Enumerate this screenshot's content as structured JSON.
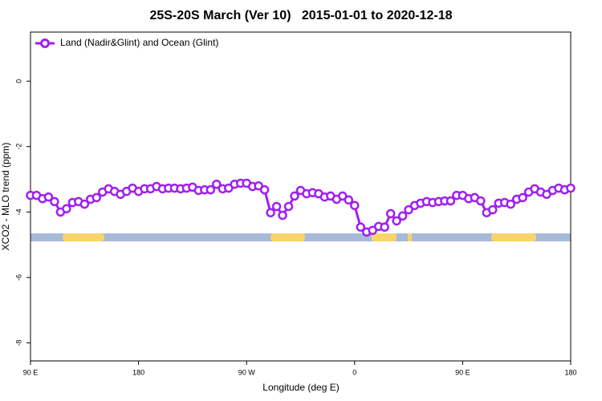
{
  "chart_data": {
    "type": "line",
    "title": "25S-20S March (Ver 10)   2015-01-01 to 2020-12-18",
    "x_label": "Longitude (deg E)",
    "y_label": "XCO2 - MLO trend (ppm)",
    "xlim": [
      90,
      540
    ],
    "ylim": [
      -8.55,
      1.5
    ],
    "xticks": [
      {
        "value": 90,
        "label": "90 E"
      },
      {
        "value": 180,
        "label": "180"
      },
      {
        "value": 270,
        "label": "90 W"
      },
      {
        "value": 360,
        "label": "0"
      },
      {
        "value": 450,
        "label": "90 E"
      },
      {
        "value": 540,
        "label": "180"
      }
    ],
    "yticks": [
      0,
      -2,
      -4,
      -6,
      -8
    ],
    "legend": "top-left",
    "x": [
      90,
      95,
      100,
      105,
      110,
      115,
      120,
      125,
      130,
      135,
      140,
      145,
      150,
      155,
      160,
      165,
      170,
      175,
      180,
      185,
      190,
      195,
      200,
      205,
      210,
      215,
      220,
      225,
      230,
      235,
      240,
      245,
      250,
      255,
      260,
      265,
      270,
      275,
      280,
      285,
      290,
      295,
      300,
      305,
      310,
      315,
      320,
      325,
      330,
      335,
      340,
      345,
      350,
      355,
      360,
      365,
      370,
      375,
      380,
      385,
      390,
      395,
      400,
      405,
      410,
      415,
      420,
      425,
      430,
      435,
      440,
      445,
      450,
      455,
      460,
      465,
      470,
      475,
      480,
      485,
      490,
      495,
      500,
      505,
      510,
      515,
      520,
      525,
      530,
      535,
      540
    ],
    "series": [
      {
        "name": "Land (Nadir&Glint) and Ocean (Glint)",
        "color": "#a020f0",
        "values": [
          -3.49,
          -3.49,
          -3.59,
          -3.54,
          -3.68,
          -4.0,
          -3.9,
          -3.71,
          -3.68,
          -3.76,
          -3.61,
          -3.56,
          -3.39,
          -3.29,
          -3.37,
          -3.46,
          -3.37,
          -3.27,
          -3.37,
          -3.29,
          -3.29,
          -3.22,
          -3.29,
          -3.27,
          -3.27,
          -3.29,
          -3.27,
          -3.24,
          -3.34,
          -3.32,
          -3.32,
          -3.15,
          -3.29,
          -3.27,
          -3.15,
          -3.12,
          -3.12,
          -3.22,
          -3.2,
          -3.32,
          -4.02,
          -3.83,
          -4.1,
          -3.83,
          -3.51,
          -3.34,
          -3.44,
          -3.41,
          -3.44,
          -3.54,
          -3.51,
          -3.61,
          -3.51,
          -3.63,
          -3.8,
          -4.46,
          -4.61,
          -4.56,
          -4.44,
          -4.46,
          -4.05,
          -4.27,
          -4.12,
          -3.93,
          -3.8,
          -3.73,
          -3.68,
          -3.71,
          -3.68,
          -3.66,
          -3.66,
          -3.49,
          -3.49,
          -3.59,
          -3.56,
          -3.66,
          -4.02,
          -3.93,
          -3.73,
          -3.71,
          -3.76,
          -3.61,
          -3.56,
          -3.39,
          -3.29,
          -3.39,
          -3.46,
          -3.34,
          -3.27,
          -3.32,
          -3.27
        ]
      }
    ]
  }
}
